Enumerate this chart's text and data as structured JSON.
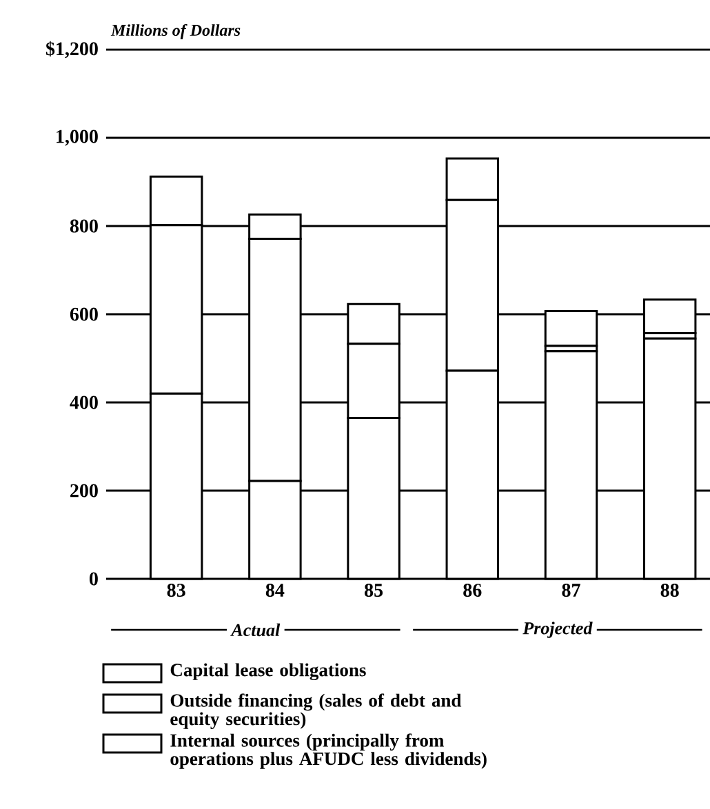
{
  "chart_data": {
    "type": "bar",
    "stacked": true,
    "ylabel": "Millions of Dollars",
    "categories": [
      "83",
      "84",
      "85",
      "86",
      "87",
      "88"
    ],
    "series": [
      {
        "name": "Internal sources (principally from operations plus AFUDC less dividends)",
        "color": "#ffffff",
        "values": [
          420,
          222,
          365,
          472,
          516,
          545
        ]
      },
      {
        "name": "Outside financing (sales of debt and equity securities)",
        "color": "#ffffff",
        "values": [
          382,
          549,
          168,
          387,
          12,
          12
        ]
      },
      {
        "name": "Capital lease obligations",
        "color": "#ffffff",
        "values": [
          110,
          55,
          90,
          94,
          79,
          76
        ]
      }
    ],
    "ylim": [
      0,
      1200
    ],
    "yticks": [
      0,
      200,
      400,
      600,
      800,
      {
        "value": 1000,
        "label": "1,000"
      },
      {
        "value": 1200,
        "label": "$1,200"
      }
    ],
    "grid": "y",
    "legend": "bottom",
    "annotations": [
      "Actual",
      "Projected"
    ]
  }
}
